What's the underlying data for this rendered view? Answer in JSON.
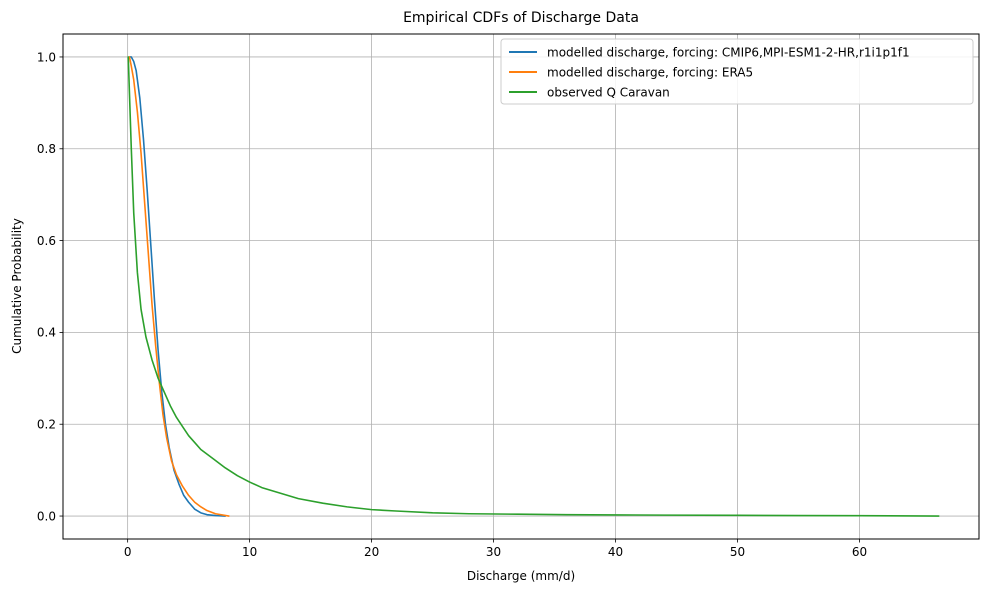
{
  "chart_data": {
    "type": "line",
    "title": "Empirical CDFs of Discharge Data",
    "xlabel": "Discharge (mm/d)",
    "ylabel": "Cumulative Probability",
    "xlim": [
      -5.3,
      69.8
    ],
    "ylim": [
      -0.05,
      1.05
    ],
    "xticks": [
      0,
      10,
      20,
      30,
      40,
      50,
      60
    ],
    "yticks": [
      0.0,
      0.2,
      0.4,
      0.6,
      0.8,
      1.0
    ],
    "xtick_labels": [
      "0",
      "10",
      "20",
      "30",
      "40",
      "50",
      "60"
    ],
    "ytick_labels": [
      "0.0",
      "0.2",
      "0.4",
      "0.6",
      "0.8",
      "1.0"
    ],
    "grid": true,
    "legend_position": "top-right",
    "series": [
      {
        "name": "modelled discharge, forcing: CMIP6,MPI-ESM1-2-HR,r1i1p1f1",
        "color": "#1f77b4",
        "points": [
          [
            0.15,
            1.0
          ],
          [
            0.3,
            1.0
          ],
          [
            0.5,
            0.99
          ],
          [
            0.7,
            0.97
          ],
          [
            1.0,
            0.91
          ],
          [
            1.3,
            0.82
          ],
          [
            1.6,
            0.71
          ],
          [
            1.9,
            0.59
          ],
          [
            2.2,
            0.47
          ],
          [
            2.5,
            0.36
          ],
          [
            2.8,
            0.27
          ],
          [
            3.1,
            0.2
          ],
          [
            3.4,
            0.15
          ],
          [
            3.8,
            0.1
          ],
          [
            4.2,
            0.07
          ],
          [
            4.6,
            0.045
          ],
          [
            5.0,
            0.03
          ],
          [
            5.5,
            0.015
          ],
          [
            6.0,
            0.007
          ],
          [
            6.5,
            0.003
          ],
          [
            7.2,
            0.001
          ],
          [
            8.0,
            0.0
          ]
        ]
      },
      {
        "name": "modelled discharge, forcing: ERA5",
        "color": "#ff7f0e",
        "points": [
          [
            0.15,
            1.0
          ],
          [
            0.3,
            0.98
          ],
          [
            0.5,
            0.95
          ],
          [
            0.8,
            0.88
          ],
          [
            1.1,
            0.79
          ],
          [
            1.4,
            0.68
          ],
          [
            1.7,
            0.57
          ],
          [
            2.0,
            0.46
          ],
          [
            2.3,
            0.37
          ],
          [
            2.6,
            0.29
          ],
          [
            2.9,
            0.22
          ],
          [
            3.2,
            0.17
          ],
          [
            3.6,
            0.12
          ],
          [
            4.0,
            0.09
          ],
          [
            4.5,
            0.065
          ],
          [
            5.0,
            0.045
          ],
          [
            5.5,
            0.03
          ],
          [
            6.0,
            0.02
          ],
          [
            6.5,
            0.012
          ],
          [
            7.2,
            0.005
          ],
          [
            8.3,
            0.0
          ]
        ]
      },
      {
        "name": "observed Q Caravan",
        "color": "#2ca02c",
        "points": [
          [
            0.05,
            1.0
          ],
          [
            0.15,
            0.92
          ],
          [
            0.3,
            0.8
          ],
          [
            0.5,
            0.66
          ],
          [
            0.8,
            0.53
          ],
          [
            1.1,
            0.45
          ],
          [
            1.5,
            0.39
          ],
          [
            2.0,
            0.34
          ],
          [
            2.5,
            0.3
          ],
          [
            3.0,
            0.27
          ],
          [
            3.5,
            0.24
          ],
          [
            4.0,
            0.215
          ],
          [
            4.5,
            0.195
          ],
          [
            5.0,
            0.175
          ],
          [
            5.5,
            0.16
          ],
          [
            6.0,
            0.145
          ],
          [
            7.0,
            0.125
          ],
          [
            8.0,
            0.105
          ],
          [
            9.0,
            0.088
          ],
          [
            10.0,
            0.074
          ],
          [
            11.0,
            0.062
          ],
          [
            12.5,
            0.05
          ],
          [
            14.0,
            0.038
          ],
          [
            16.0,
            0.028
          ],
          [
            18.0,
            0.02
          ],
          [
            20.0,
            0.014
          ],
          [
            22.0,
            0.011
          ],
          [
            25.0,
            0.007
          ],
          [
            28.0,
            0.005
          ],
          [
            32.0,
            0.004
          ],
          [
            36.0,
            0.003
          ],
          [
            40.0,
            0.0025
          ],
          [
            44.0,
            0.002
          ],
          [
            50.0,
            0.0015
          ],
          [
            55.0,
            0.001
          ],
          [
            60.0,
            0.0007
          ],
          [
            66.5,
            0.0
          ]
        ]
      }
    ]
  }
}
